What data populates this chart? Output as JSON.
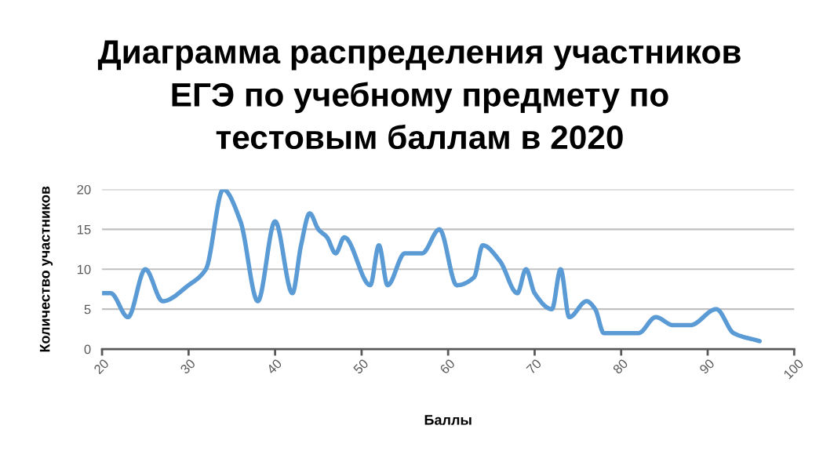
{
  "chart_data": {
    "type": "line",
    "title": "Диаграмма распределения участников\nЕГЭ по учебному предмету по\nтестовым баллам в 2020",
    "xlabel": "Баллы",
    "ylabel": "Количество участников",
    "x": [
      20,
      21,
      23,
      25,
      27,
      30,
      32,
      34,
      36,
      38,
      40,
      42,
      43,
      44,
      45,
      46,
      47,
      48,
      51,
      52,
      53,
      55,
      57,
      59,
      61,
      63,
      64,
      66,
      68,
      69,
      70,
      72,
      73,
      74,
      76,
      77,
      78,
      79,
      82,
      84,
      86,
      88,
      91,
      93,
      96
    ],
    "series": [
      {
        "color": "#5b9bd5",
        "values": [
          7,
          7,
          4,
          10,
          6,
          8,
          10,
          20,
          16,
          6,
          16,
          7,
          13,
          17,
          15,
          14,
          12,
          14,
          8,
          13,
          8,
          12,
          12,
          15,
          8,
          9,
          13,
          11,
          7,
          10,
          7,
          5,
          10,
          4,
          6,
          5,
          2,
          2,
          2,
          4,
          3,
          3,
          5,
          2,
          1
        ]
      }
    ],
    "xlim": [
      20,
      100
    ],
    "xticks": [
      20,
      30,
      40,
      50,
      60,
      70,
      80,
      90,
      100
    ],
    "ylim": [
      0,
      20
    ],
    "yticks": [
      0,
      5,
      10,
      15,
      20
    ],
    "grid": "y",
    "marker": "none",
    "line_style": "solid"
  }
}
